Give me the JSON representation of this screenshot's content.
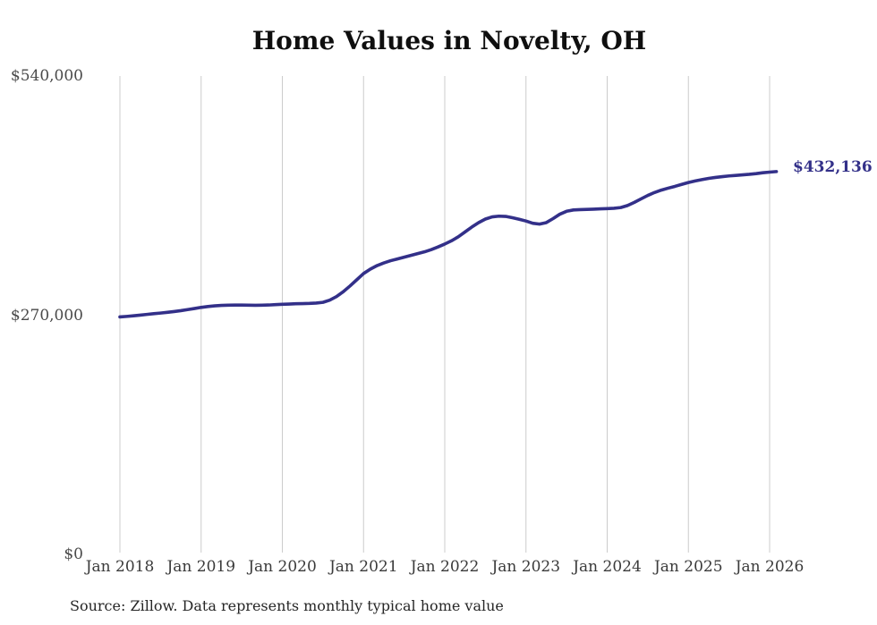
{
  "chart": {
    "title": "Home Values in Novelty, OH",
    "end_label": "$432,136",
    "source": "Source: Zillow. Data represents monthly typical home value"
  },
  "chart_data": {
    "type": "line",
    "title": "Home Values in Novelty, OH",
    "x_start": "Jan 2018",
    "x_end": "Feb 2026",
    "frequency": "monthly",
    "x_tick_labels": [
      "Jan 2018",
      "Jan 2019",
      "Jan 2020",
      "Jan 2021",
      "Jan 2022",
      "Jan 2023",
      "Jan 2024",
      "Jan 2025",
      "Jan 2026"
    ],
    "y_ticks": [
      0,
      270000,
      540000
    ],
    "y_tick_labels": [
      "$0",
      "$270,000",
      "$540,000"
    ],
    "ylim": [
      0,
      540000
    ],
    "grid": "vertical-only",
    "legend": "none",
    "line_color": "#333089",
    "grid_color": "#cccccc",
    "end_value": 432136,
    "end_value_label": "$432,136",
    "series": [
      {
        "name": "Typical home value",
        "values": [
          268000,
          268600,
          269300,
          270100,
          270900,
          271700,
          272400,
          273200,
          274100,
          275100,
          276300,
          277500,
          278800,
          279800,
          280500,
          281000,
          281300,
          281400,
          281400,
          281300,
          281200,
          281300,
          281500,
          281900,
          282300,
          282600,
          282900,
          283100,
          283300,
          283700,
          284500,
          287000,
          291000,
          296500,
          303000,
          310000,
          317000,
          322000,
          326000,
          329000,
          331500,
          333500,
          335500,
          337500,
          339500,
          341500,
          344000,
          347000,
          350300,
          354000,
          358500,
          364000,
          369500,
          374500,
          378500,
          381000,
          381800,
          381500,
          380000,
          378300,
          376300,
          373800,
          372800,
          374500,
          379000,
          384000,
          387300,
          388800,
          389200,
          389400,
          389700,
          390000,
          390300,
          390700,
          391500,
          393800,
          397300,
          401300,
          405200,
          408500,
          411200,
          413400,
          415400,
          417600,
          419800,
          421500,
          423000,
          424400,
          425500,
          426400,
          427200,
          427800,
          428400,
          429000,
          429800,
          430800,
          431500,
          432136
        ]
      }
    ],
    "source": "Source: Zillow. Data represents monthly typical home value"
  }
}
